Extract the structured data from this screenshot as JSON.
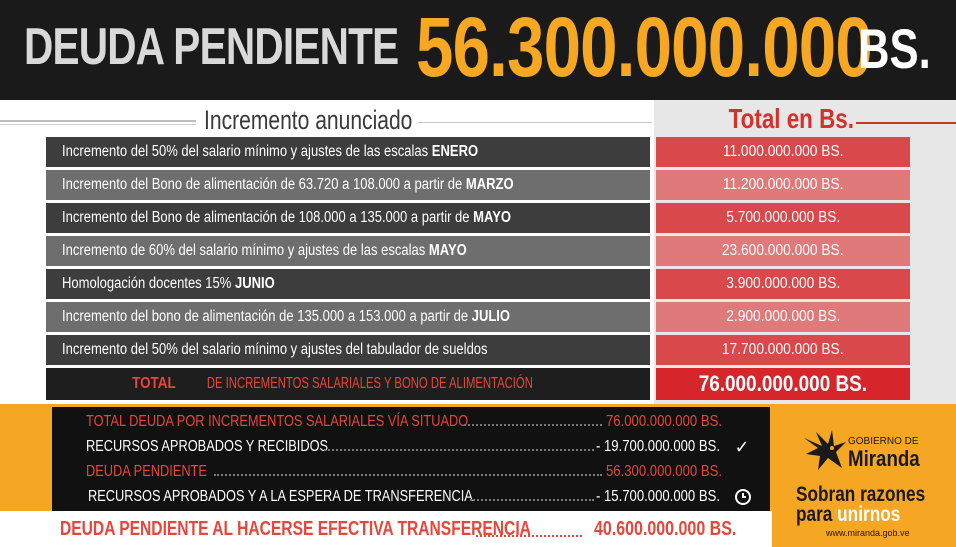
{
  "header": {
    "label": "DEUDA PENDIENTE",
    "amount": "56.300.000.000",
    "unit": "BS."
  },
  "table": {
    "column_title": "Incremento anunciado",
    "total_title": "Total en Bs.",
    "rows": [
      {
        "text": "Incremento del 50% del salario mínimo y ajustes de las escalas ",
        "bold": "ENERO",
        "value": "11.000.000.000 BS."
      },
      {
        "text": "Incremento del Bono de alimentación de 63.720 a 108.000 a partir de ",
        "bold": "MARZO",
        "value": "11.200.000.000 BS."
      },
      {
        "text": "Incremento del Bono de alimentación de 108.000 a 135.000 a partir de ",
        "bold": "MAYO",
        "value": "5.700.000.000  BS."
      },
      {
        "text": "Incremento de 60% del salario mínimo y ajustes de las escalas ",
        "bold": "MAYO",
        "value": "23.600.000.000 BS."
      },
      {
        "text": "Homologación docentes 15% ",
        "bold": "JUNIO",
        "value": "3.900.000.000 BS."
      },
      {
        "text": "Incremento del bono de alimentación de 135.000 a 153.000 a partir de ",
        "bold": "JULIO",
        "value": "2.900.000.000 BS."
      },
      {
        "text": "Incremento del 50% del salario mínimo  y ajustes del tabulador de sueldos",
        "bold": "",
        "value": "17.700.000.000 BS."
      }
    ],
    "total_row": {
      "bold": "TOTAL",
      "text": " DE INCREMENTOS SALARIALES Y BONO DE ALIMENTACIÓN",
      "value": "76.000.000.000 BS."
    }
  },
  "summary": {
    "rows": [
      {
        "label": "TOTAL  DEUDA POR INCREMENTOS SALARIALES VÍA SITUADO",
        "amount": "76.000.000.000 BS.",
        "icon": ""
      },
      {
        "label": "RECURSOS APROBADOS Y RECIBIDOS",
        "amount": "- 19.700.000.000 BS.",
        "icon": "check-icon"
      },
      {
        "label": "DEUDA PENDIENTE",
        "amount": "56.300.000.000 BS.",
        "icon": ""
      },
      {
        "label": "RECURSOS APROBADOS Y A LA ESPERA DE TRANSFERENCIA",
        "amount": "- 15.700.000.000 BS.",
        "icon": "clock-icon"
      }
    ],
    "final": {
      "label": "DEUDA PENDIENTE AL HACERSE EFECTIVA TRANSFERENCIA",
      "amount": "40.600.000.000 BS."
    }
  },
  "logo": {
    "top": "GOBIERNO DE",
    "name": "Miranda",
    "slogan_line1": "Sobran razones",
    "slogan_line2_a": "para ",
    "slogan_line2_b": "unirnos",
    "website": "www.miranda.gob.ve"
  },
  "colors": {
    "accent_yellow": "#f7a823",
    "accent_red": "#d4312a",
    "dark": "#1a1a1a"
  }
}
